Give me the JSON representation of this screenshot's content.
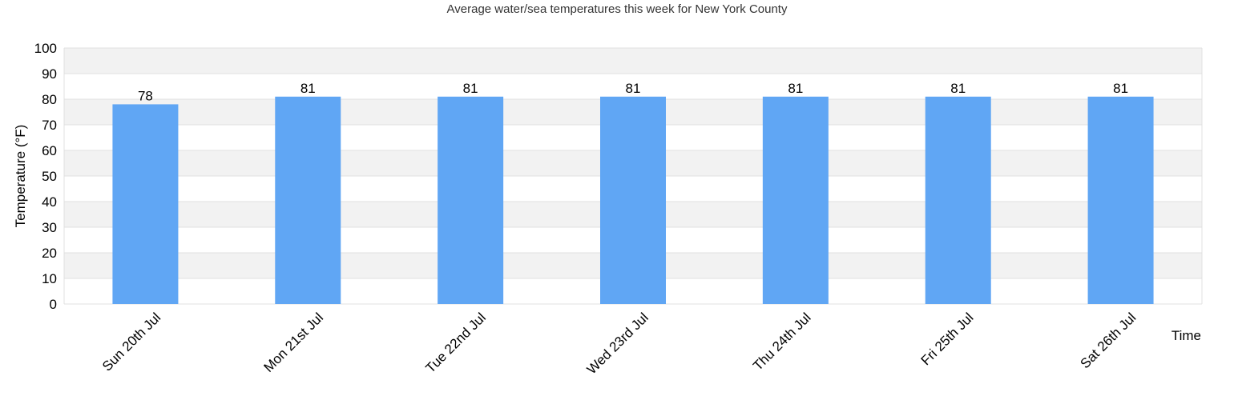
{
  "chart_data": {
    "type": "bar",
    "title": "Average water/sea temperatures this week for New York County",
    "xlabel": "Time",
    "ylabel": "Temperature (°F)",
    "categories": [
      "Sun 20th Jul",
      "Mon 21st Jul",
      "Tue 22nd Jul",
      "Wed 23rd Jul",
      "Thu 24th Jul",
      "Fri 25th Jul",
      "Sat 26th Jul"
    ],
    "series": [
      {
        "values": [
          78,
          81,
          81,
          81,
          81,
          81,
          81
        ],
        "color": "#60a6f4"
      }
    ],
    "ylim": [
      0,
      100
    ],
    "yticks": [
      0,
      10,
      20,
      30,
      40,
      50,
      60,
      70,
      80,
      90,
      100
    ],
    "data_labels": true,
    "grid": true,
    "band_colors": [
      "#ffffff",
      "#f2f2f2"
    ]
  }
}
